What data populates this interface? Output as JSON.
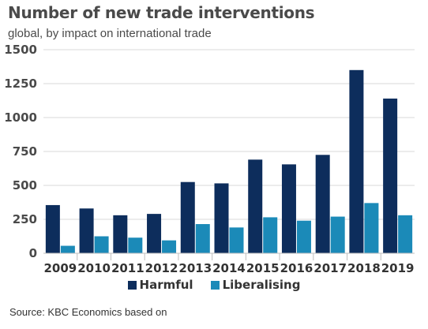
{
  "header": {
    "title": "Number of new trade interventions",
    "subtitle": "global, by impact on international trade"
  },
  "chart_data": {
    "type": "bar",
    "title": "Number of new trade interventions",
    "subtitle": "global, by impact on international trade",
    "categories": [
      "2009",
      "2010",
      "2011",
      "2012",
      "2013",
      "2014",
      "2015",
      "2016",
      "2017",
      "2018",
      "2019"
    ],
    "series": [
      {
        "name": "Harmful",
        "color": "#0d2d5c",
        "values": [
          355,
          330,
          280,
          290,
          525,
          515,
          690,
          655,
          725,
          1350,
          1140
        ]
      },
      {
        "name": "Liberalising",
        "color": "#1b8ab8",
        "values": [
          55,
          125,
          115,
          95,
          215,
          190,
          265,
          240,
          270,
          370,
          280
        ]
      }
    ],
    "yticks": [
      "0",
      "250",
      "500",
      "750",
      "1000",
      "1250",
      "1500"
    ],
    "ylim": [
      0,
      1500
    ],
    "grid": true,
    "legend": "bottom-center",
    "xlabel": "",
    "ylabel": ""
  },
  "source": "Source: KBC Economics based on"
}
